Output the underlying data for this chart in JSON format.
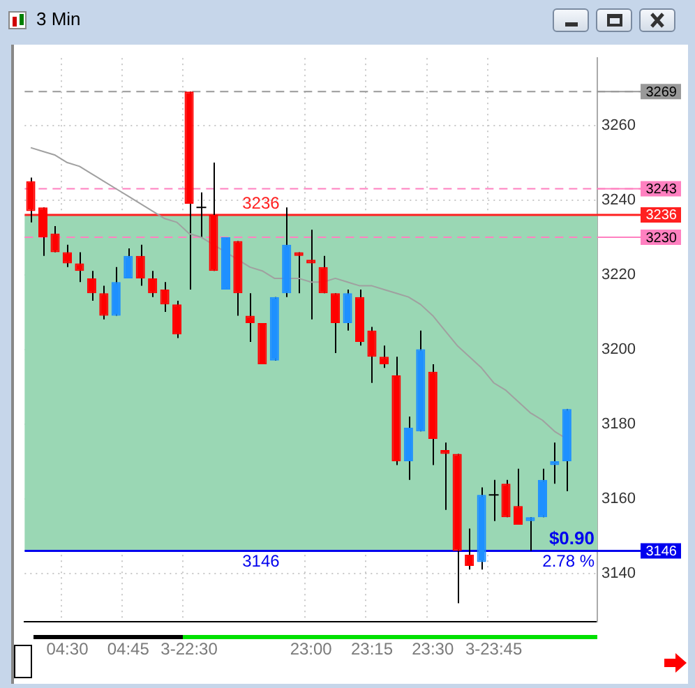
{
  "chart_data": {
    "type": "candlestick",
    "title": "3 Min",
    "categories": [
      null,
      null,
      null,
      "04:30",
      null,
      null,
      null,
      null,
      "04:45",
      null,
      null,
      null,
      null,
      "3-22:30",
      null,
      null,
      null,
      null,
      null,
      null,
      null,
      null,
      null,
      "23:00",
      null,
      null,
      null,
      null,
      "23:15",
      null,
      null,
      null,
      null,
      "23:30",
      null,
      null,
      null,
      null,
      "3-23:45",
      null,
      null,
      null,
      null,
      null,
      null,
      null,
      null
    ],
    "ohlc": [
      [
        3245,
        3246,
        3234,
        3237
      ],
      [
        3238,
        3238,
        3225,
        3230
      ],
      [
        3231,
        3233,
        3226,
        3226
      ],
      [
        3226,
        3228,
        3222,
        3223
      ],
      [
        3223,
        3226,
        3218,
        3221
      ],
      [
        3219,
        3221,
        3213,
        3215
      ],
      [
        3215,
        3217,
        3208,
        3209
      ],
      [
        3209,
        3222,
        3209,
        3218
      ],
      [
        3219,
        3227,
        3219,
        3225
      ],
      [
        3225,
        3228,
        3217,
        3219
      ],
      [
        3219,
        3221,
        3214,
        3215
      ],
      [
        3216,
        3218,
        3210,
        3212
      ],
      [
        3212,
        3213,
        3203,
        3204
      ],
      [
        3269,
        3269,
        3216,
        3239
      ],
      [
        3238,
        3242,
        3230,
        3238
      ],
      [
        3236,
        3250,
        3221,
        3221
      ],
      [
        3216,
        3230,
        3216,
        3230
      ],
      [
        3229,
        3229,
        3209,
        3215
      ],
      [
        3209,
        3215,
        3202,
        3207
      ],
      [
        3207,
        3207,
        3196,
        3196
      ],
      [
        3197,
        3214,
        3197,
        3214
      ],
      [
        3215,
        3238,
        3214,
        3228
      ],
      [
        3226,
        3226,
        3215,
        3225
      ],
      [
        3224,
        3232,
        3208,
        3223
      ],
      [
        3222,
        3225,
        3215,
        3215
      ],
      [
        3215,
        3215,
        3199,
        3207
      ],
      [
        3207,
        3216,
        3205,
        3215
      ],
      [
        3214,
        3216,
        3201,
        3202
      ],
      [
        3205,
        3206,
        3191,
        3198
      ],
      [
        3198,
        3201,
        3195,
        3196
      ],
      [
        3193,
        3198,
        3169,
        3170
      ],
      [
        3170,
        3182,
        3165,
        3179
      ],
      [
        3178,
        3205,
        3178,
        3200
      ],
      [
        3194,
        3196,
        3169,
        3176
      ],
      [
        3173,
        3175,
        3157,
        3172
      ],
      [
        3172,
        3172,
        3132,
        3146
      ],
      [
        3145,
        3152,
        3141,
        3142
      ],
      [
        3143,
        3163,
        3141,
        3161
      ],
      [
        3161,
        3165,
        3154,
        3161
      ],
      [
        3164,
        3165,
        3155,
        3155
      ],
      [
        3158,
        3168,
        3153,
        3153
      ],
      [
        3154,
        3155,
        3146,
        3155
      ],
      [
        3155,
        3168,
        3155,
        3165
      ],
      [
        3169,
        3175,
        3164,
        3170
      ],
      [
        3170,
        3184,
        3162,
        3184
      ],
      null,
      null
    ],
    "colors": [
      "#ff0000",
      "#ff0000",
      "#ff0000",
      "#ff0000",
      "#ff0000",
      "#ff0000",
      "#ff0000",
      "#1e90ff",
      "#1e90ff",
      "#ff0000",
      "#ff0000",
      "#ff0000",
      "#ff0000",
      "#ff0000",
      "#000000",
      "#ff0000",
      "#1e90ff",
      "#ff0000",
      "#ff0000",
      "#ff0000",
      "#1e90ff",
      "#1e90ff",
      "#ff0000",
      "#ff0000",
      "#ff0000",
      "#ff0000",
      "#1e90ff",
      "#ff0000",
      "#ff0000",
      "#ff0000",
      "#ff0000",
      "#1e90ff",
      "#1e90ff",
      "#ff0000",
      "#ff0000",
      "#ff0000",
      "#ff0000",
      "#1e90ff",
      "#000000",
      "#ff0000",
      "#ff0000",
      "#1e90ff",
      "#1e90ff",
      "#1e90ff",
      "#1e90ff",
      "#ff0000",
      "#ff0000"
    ],
    "series": [
      {
        "type": "line",
        "color": "#a0a0a0",
        "values": [
          3254,
          3253,
          3252,
          3250,
          3249,
          3247,
          3245,
          3243,
          3241,
          3239,
          3237,
          3235,
          3234,
          3231,
          3230,
          3228,
          3226,
          3224,
          3222,
          3221,
          3219,
          3219,
          3219,
          3218,
          3218,
          3219,
          3218,
          3217,
          3217,
          3216,
          3215,
          3214,
          3212,
          3209,
          3205,
          3201,
          3198,
          3195,
          3191,
          3189,
          3186,
          3183,
          3181,
          3178,
          3176,
          null,
          null
        ]
      }
    ],
    "ylim": [
      3127,
      3278
    ],
    "yticks": [
      3140,
      3160,
      3180,
      3200,
      3220,
      3240,
      3260
    ],
    "grid": true,
    "legend": false,
    "marker": "none",
    "ref_lines": [
      {
        "axis": "y",
        "value": 3269,
        "label": "3269",
        "color": "#999999",
        "line_style": "dashed"
      },
      {
        "axis": "y",
        "value": 3243,
        "label": "3243",
        "color": "#ff80c0",
        "line_style": "dashed"
      },
      {
        "axis": "y",
        "value": 3236,
        "label": "3236",
        "color": "#ff2020",
        "line_style": "solid"
      },
      {
        "axis": "y",
        "value": 3230,
        "label": "3230",
        "color": "#ff80c0",
        "line_style": "dashed"
      },
      {
        "axis": "y",
        "value": 3146,
        "label": "3146",
        "color": "#0000ee",
        "line_style": "solid"
      }
    ],
    "bands": [
      {
        "axis": "y",
        "from": 3146,
        "to": 3236,
        "color": "#9ad7b4"
      }
    ],
    "annotations": [
      {
        "text": "3236",
        "y": 3236
      },
      {
        "text": "3146",
        "y": 3146
      },
      {
        "text": "$0.90",
        "y": 3146
      },
      {
        "text": "2.78 %",
        "y": 3146
      }
    ]
  }
}
